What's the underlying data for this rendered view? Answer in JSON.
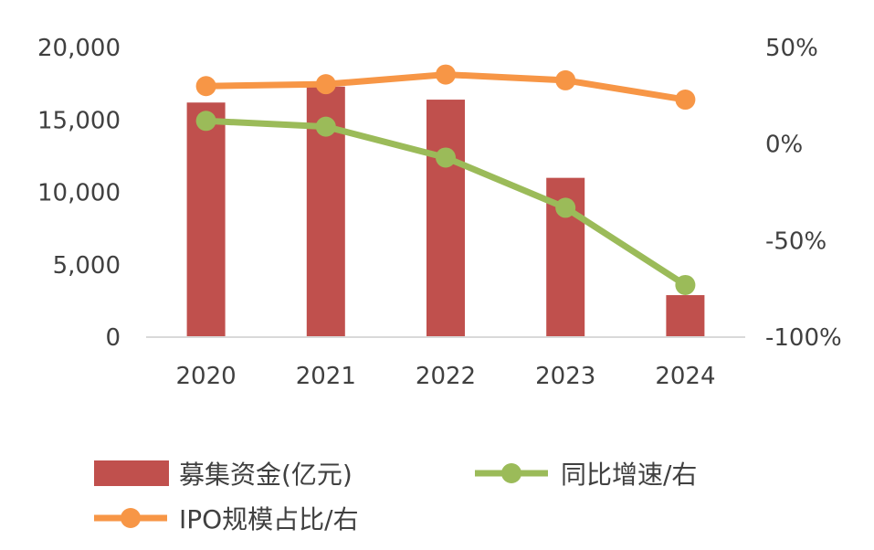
{
  "chart_data": {
    "type": "bar+line",
    "categories": [
      "2020",
      "2021",
      "2022",
      "2023",
      "2024"
    ],
    "left_axis": {
      "ylim": [
        0,
        20000
      ],
      "ticks": [
        0,
        5000,
        10000,
        15000,
        20000
      ],
      "tick_labels": [
        "0",
        "5,000",
        "10,000",
        "15,000",
        "20,000"
      ]
    },
    "right_axis": {
      "ylim": [
        -100,
        50
      ],
      "ticks": [
        -100,
        -50,
        0,
        50
      ],
      "tick_labels": [
        "-100%",
        "-50%",
        "0%",
        "50%"
      ]
    },
    "series": [
      {
        "name": "募集资金(亿元)",
        "type": "bar",
        "axis": "left",
        "color": "#C0504D",
        "values": [
          16200,
          17300,
          16400,
          11000,
          2900
        ]
      },
      {
        "name": "同比增速/右",
        "type": "line",
        "axis": "right",
        "color": "#9BBB59",
        "values": [
          12,
          9,
          -7,
          -33,
          -73
        ]
      },
      {
        "name": "IPO规模占比/右",
        "type": "line",
        "axis": "right",
        "color": "#F79646",
        "values": [
          30,
          31,
          36,
          33,
          23
        ]
      }
    ],
    "legend": [
      "募集资金(亿元)",
      "同比增速/右",
      "IPO规模占比/右"
    ],
    "legend_position": "bottom"
  }
}
